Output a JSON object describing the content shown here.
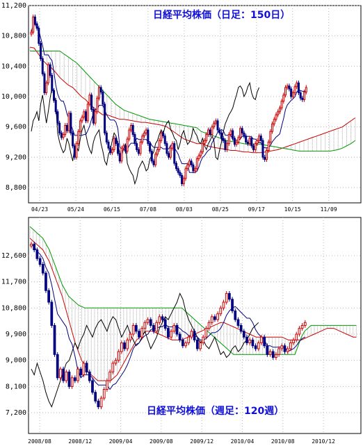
{
  "chart_data": [
    {
      "type": "candlestick",
      "title": "日経平均株価（日足：150日）",
      "xlabel": "",
      "ylabel": "",
      "ylim": [
        8600,
        11200
      ],
      "yticks": [
        11200,
        10800,
        10400,
        10000,
        9600,
        9200,
        8800
      ],
      "ytick_labels": [
        "11,200",
        "10,800",
        "10,400",
        "10,000",
        "9,600",
        "9,200",
        "8,800"
      ],
      "x_labels": [
        "04/23",
        "05/24",
        "06/15",
        "07/08",
        "08/03",
        "08/25",
        "09/17",
        "10/15",
        "11/09"
      ],
      "grid": true,
      "colors": {
        "up": "#cc0000",
        "down": "#000080",
        "cloud": "#aaaaaa",
        "span_a": "#cc0000",
        "span_b": "#009900",
        "lagging": "#000000",
        "tenkan": "#000080",
        "kijun": "#000000"
      },
      "candles_close": [
        10850,
        11050,
        10960,
        10900,
        10700,
        10500,
        10300,
        10050,
        10180,
        10420,
        10280,
        10080,
        9950,
        9800,
        9650,
        9520,
        9460,
        9500,
        9620,
        9550,
        9780,
        9520,
        9350,
        9200,
        9380,
        9540,
        9680,
        9730,
        9800,
        9680,
        9900,
        10020,
        9830,
        9650,
        9800,
        9980,
        10120,
        10060,
        9900,
        9520,
        9400,
        9320,
        9260,
        9300,
        9450,
        9380,
        9250,
        9150,
        9320,
        9350,
        9280,
        9440,
        9560,
        9620,
        9500,
        9380,
        9300,
        9250,
        9400,
        9480,
        9520,
        9560,
        9380,
        9280,
        9150,
        9100,
        9240,
        9300,
        9420,
        9520,
        9480,
        9380,
        9250,
        9200,
        9320,
        9380,
        9120,
        9050,
        9000,
        8960,
        8850,
        8920,
        9050,
        9100,
        9150,
        9100,
        9020,
        9050,
        9180,
        9220,
        9270,
        9380,
        9420,
        9500,
        9560,
        9500,
        9600,
        9650,
        9680,
        9560,
        9520,
        9450,
        9420,
        9300,
        9380,
        9500,
        9550,
        9450,
        9370,
        9400,
        9460,
        9580,
        9520,
        9480,
        9400,
        9380,
        9450,
        9350,
        9300,
        9380,
        9420,
        9480,
        9420,
        9200,
        9170,
        9290,
        9400,
        9540,
        9640,
        9700,
        9760,
        9800,
        9850,
        9940,
        10020,
        10120,
        10140,
        10100,
        10000,
        10050,
        10130,
        10180,
        10050,
        9980,
        9960,
        10060,
        10120
      ],
      "span_a": [
        10650,
        10640,
        10560,
        10480,
        10420,
        10380,
        10320,
        10250,
        10200,
        10150,
        10120,
        10060,
        10000,
        9960,
        9900,
        9850,
        9800,
        9760,
        9760,
        9740,
        9720,
        9700,
        9700,
        9690,
        9680,
        9670,
        9660,
        9660,
        9650,
        9640,
        9630,
        9620,
        9600,
        9560,
        9520,
        9480,
        9440,
        9420,
        9400,
        9380,
        9380,
        9360,
        9340,
        9330,
        9320,
        9310,
        9300,
        9290,
        9290,
        9280,
        9270,
        9270,
        9260,
        9260,
        9260,
        9270,
        9280,
        9290,
        9300,
        9320,
        9340,
        9360,
        9380,
        9400,
        9420,
        9440,
        9460,
        9480,
        9500,
        9520,
        9540,
        9560,
        9580,
        9600,
        9640,
        9680,
        9720
      ],
      "span_b": [
        10600,
        10600,
        10600,
        10600,
        10600,
        10600,
        10600,
        10600,
        10560,
        10520,
        10480,
        10440,
        10380,
        10320,
        10260,
        10200,
        10140,
        10080,
        10020,
        9960,
        9900,
        9860,
        9820,
        9800,
        9780,
        9760,
        9740,
        9720,
        9700,
        9690,
        9680,
        9670,
        9660,
        9650,
        9640,
        9630,
        9620,
        9610,
        9600,
        9590,
        9540,
        9520,
        9500,
        9480,
        9460,
        9440,
        9420,
        9410,
        9400,
        9390,
        9380,
        9370,
        9370,
        9370,
        9370,
        9360,
        9350,
        9340,
        9330,
        9320,
        9310,
        9300,
        9290,
        9280,
        9280,
        9280,
        9280,
        9280,
        9280,
        9280,
        9280,
        9290,
        9300,
        9320,
        9350,
        9380,
        9420
      ]
    },
    {
      "type": "candlestick",
      "title": "日経平均株価（週足：120週）",
      "xlabel": "",
      "ylabel": "",
      "ylim": [
        6800,
        13600
      ],
      "yticks": [
        12600,
        11700,
        10800,
        9900,
        9000,
        8100,
        7200
      ],
      "ytick_labels": [
        "12,600",
        "11,700",
        "10,800",
        "9,900",
        "9,000",
        "8,100",
        "7,200"
      ],
      "x_labels": [
        "2008/08",
        "2008/12",
        "2009/04",
        "2009/08",
        "2009/12",
        "2010/04",
        "2010/08",
        "2010/12"
      ],
      "grid": true,
      "colors": {
        "up": "#cc0000",
        "down": "#000080",
        "cloud": "#aaaaaa",
        "span_a": "#cc0000",
        "span_b": "#009900",
        "lagging": "#000000"
      },
      "candles_close": [
        13000,
        12800,
        12500,
        12300,
        12000,
        11400,
        11000,
        10200,
        9200,
        8400,
        8700,
        8300,
        8600,
        8100,
        8400,
        8300,
        8700,
        8500,
        8900,
        8600,
        8300,
        7900,
        7600,
        7400,
        7700,
        8000,
        8300,
        8600,
        8900,
        9000,
        9300,
        9600,
        9400,
        9700,
        9900,
        10200,
        10000,
        9800,
        10100,
        10300,
        10400,
        10200,
        10000,
        10300,
        10500,
        10400,
        10100,
        9800,
        10000,
        10200,
        9900,
        9700,
        9500,
        9600,
        9800,
        10000,
        9700,
        9400,
        9600,
        9800,
        10100,
        10300,
        10500,
        10400,
        10600,
        10800,
        11000,
        11300,
        11100,
        10700,
        10400,
        10200,
        10000,
        9800,
        9600,
        9700,
        9500,
        9400,
        9600,
        9800,
        9500,
        9200,
        9300,
        9100,
        9200,
        9400,
        9500,
        9300,
        9400,
        9600,
        9700,
        9900,
        10100,
        10200,
        10300
      ],
      "span_a": [
        13200,
        13100,
        13000,
        12900,
        12800,
        12600,
        12400,
        12100,
        11800,
        11500,
        11200,
        10800,
        10400,
        10000,
        9600,
        9300,
        9000,
        8800,
        8600,
        8500,
        8400,
        8300,
        8300,
        8300,
        8300,
        8300,
        8400,
        8500,
        8700,
        8900,
        9100,
        9300,
        9500,
        9700,
        9800,
        9900,
        10000,
        10000,
        10000,
        9950,
        9900,
        9850,
        9800,
        9750,
        9700,
        9700,
        9700,
        9700,
        9750,
        9800,
        9850,
        9900,
        9950,
        10000,
        10050,
        10100,
        10150,
        10200,
        10250,
        10300,
        10300,
        10250,
        10200,
        10150,
        10100,
        10050,
        10000,
        9950,
        9900,
        9850,
        9800,
        9800,
        9800,
        9800,
        9800,
        9800,
        9800,
        9800,
        9800,
        9750,
        9700,
        9700,
        9700,
        9700,
        9700,
        9750,
        9800,
        9850,
        9900,
        9950,
        10000,
        10050,
        10100,
        10100,
        10100,
        10050,
        10000,
        9950,
        9900,
        9850,
        9800,
        9800
      ],
      "span_b": [
        13600,
        13500,
        13400,
        13300,
        13200,
        13000,
        12800,
        12500,
        12200,
        11900,
        11600,
        11400,
        11200,
        11100,
        11000,
        10900,
        10850,
        10800,
        10800,
        10800,
        10800,
        10800,
        10800,
        10800,
        10800,
        10800,
        10800,
        10800,
        10800,
        10800,
        10800,
        10800,
        10800,
        10800,
        10800,
        10800,
        10800,
        10800,
        10800,
        10800,
        10800,
        10800,
        10800,
        10800,
        10800,
        10800,
        10800,
        10800,
        10700,
        10600,
        10500,
        10400,
        10300,
        10200,
        10100,
        10000,
        9900,
        9800,
        9700,
        9600,
        9500,
        9400,
        9300,
        9200,
        9200,
        9200,
        9200,
        9200,
        9200,
        9200,
        9200,
        9200,
        9200,
        9200,
        9200,
        9200,
        9200,
        9200,
        9200,
        9200,
        9200,
        9200,
        9200,
        9500,
        9800,
        10000,
        10100,
        10200,
        10200,
        10200,
        10200,
        10200,
        10200,
        10200,
        10200,
        10200,
        10200,
        10200,
        10200,
        10200,
        10200,
        10200
      ]
    }
  ]
}
